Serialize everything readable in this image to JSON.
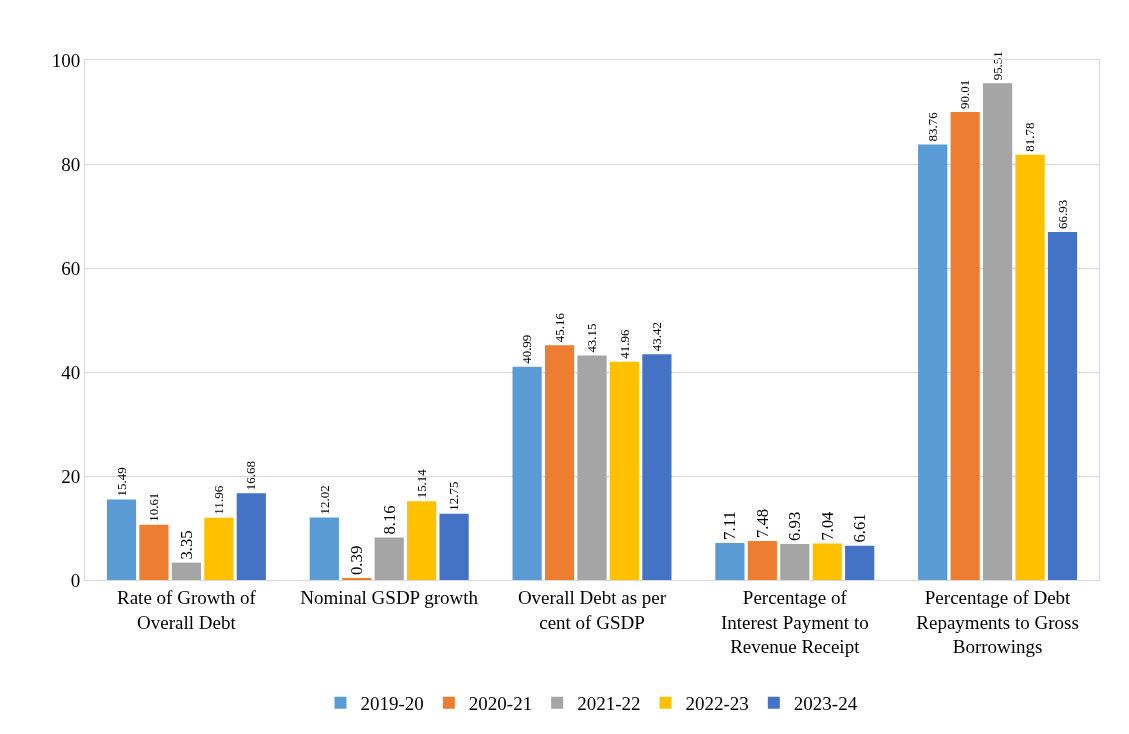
{
  "chart_data": {
    "type": "bar",
    "categories": [
      "Rate of Growth of Overall Debt",
      "Nominal GSDP growth",
      "Overall Debt as per cent of GSDP",
      "Percentage of Interest Payment to Revenue Receipt",
      "Percentage of Debt Repayments to Gross Borrowings"
    ],
    "series": [
      {
        "name": "2019-20",
        "color": "#5b9bd5",
        "values": [
          15.49,
          12.02,
          40.99,
          7.11,
          83.76
        ]
      },
      {
        "name": "2020-21",
        "color": "#ed7d31",
        "values": [
          10.61,
          0.39,
          45.16,
          7.48,
          90.01
        ]
      },
      {
        "name": "2021-22",
        "color": "#a5a5a5",
        "values": [
          3.35,
          8.16,
          43.15,
          6.93,
          95.51
        ]
      },
      {
        "name": "2022-23",
        "color": "#ffc000",
        "values": [
          11.96,
          15.14,
          41.96,
          7.04,
          81.78
        ]
      },
      {
        "name": "2023-24",
        "color": "#4472c4",
        "values": [
          16.68,
          12.75,
          43.42,
          6.61,
          66.93
        ]
      }
    ],
    "ylim": [
      0,
      100
    ],
    "yticks": [
      0,
      20,
      40,
      60,
      80,
      100
    ],
    "grid": "y",
    "legend": "bottom",
    "data_labels": true
  }
}
